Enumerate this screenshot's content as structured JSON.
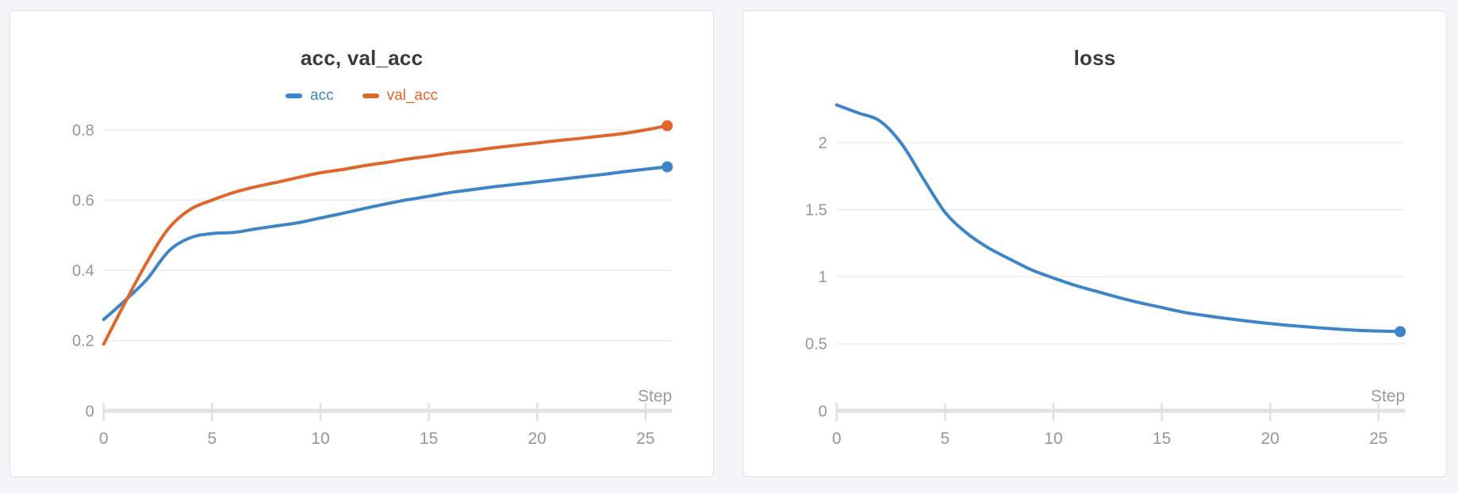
{
  "colors": {
    "blue": "#3d85c8",
    "orange": "#e0672b",
    "gridline": "#ebebeb",
    "axis": "#e1e1e3",
    "tick_text": "#95959d",
    "title_text": "#3b3b3b",
    "card_border": "#e2e2e4",
    "page_bg": "#f5f5f7"
  },
  "chart_data": [
    {
      "type": "line",
      "title": "acc, val_acc",
      "xlabel": "Step",
      "grid": true,
      "legend": true,
      "legend_position": "top",
      "end_marker": true,
      "xlim": [
        0,
        26
      ],
      "ylim": [
        0,
        0.81
      ],
      "xticks": [
        0,
        5,
        10,
        15,
        20,
        25
      ],
      "yticks": [
        0,
        0.2,
        0.4,
        0.6,
        0.8
      ],
      "x": [
        0,
        1,
        2,
        3,
        4,
        5,
        6,
        7,
        8,
        9,
        10,
        11,
        12,
        13,
        14,
        15,
        16,
        17,
        18,
        19,
        20,
        21,
        22,
        23,
        24,
        25,
        26
      ],
      "series": [
        {
          "name": "acc",
          "color": "#3d85c8",
          "values": [
            0.26,
            0.315,
            0.375,
            0.455,
            0.493,
            0.505,
            0.508,
            0.518,
            0.527,
            0.536,
            0.549,
            0.562,
            0.576,
            0.589,
            0.601,
            0.611,
            0.622,
            0.63,
            0.638,
            0.645,
            0.652,
            0.659,
            0.666,
            0.673,
            0.681,
            0.688,
            0.695
          ]
        },
        {
          "name": "val_acc",
          "color": "#e0672b",
          "values": [
            0.19,
            0.31,
            0.424,
            0.52,
            0.574,
            0.6,
            0.622,
            0.638,
            0.651,
            0.665,
            0.678,
            0.687,
            0.698,
            0.707,
            0.717,
            0.725,
            0.734,
            0.741,
            0.749,
            0.756,
            0.763,
            0.77,
            0.776,
            0.783,
            0.79,
            0.8,
            0.812
          ]
        }
      ]
    },
    {
      "type": "line",
      "title": "loss",
      "xlabel": "Step",
      "grid": true,
      "legend": false,
      "end_marker": true,
      "xlim": [
        0,
        26
      ],
      "ylim": [
        0,
        2.12
      ],
      "xticks": [
        0,
        5,
        10,
        15,
        20,
        25
      ],
      "yticks": [
        0,
        0.5,
        1,
        1.5,
        2
      ],
      "x": [
        0,
        1,
        2,
        3,
        4,
        5,
        6,
        7,
        8,
        9,
        10,
        11,
        12,
        13,
        14,
        15,
        16,
        17,
        18,
        19,
        20,
        21,
        22,
        23,
        24,
        25,
        26
      ],
      "series": [
        {
          "name": "loss",
          "color": "#3d85c8",
          "values": [
            2.28,
            2.22,
            2.16,
            1.99,
            1.73,
            1.48,
            1.325,
            1.215,
            1.13,
            1.05,
            0.99,
            0.935,
            0.89,
            0.845,
            0.805,
            0.77,
            0.735,
            0.71,
            0.688,
            0.668,
            0.65,
            0.635,
            0.622,
            0.61,
            0.6,
            0.595,
            0.59
          ]
        }
      ]
    }
  ]
}
